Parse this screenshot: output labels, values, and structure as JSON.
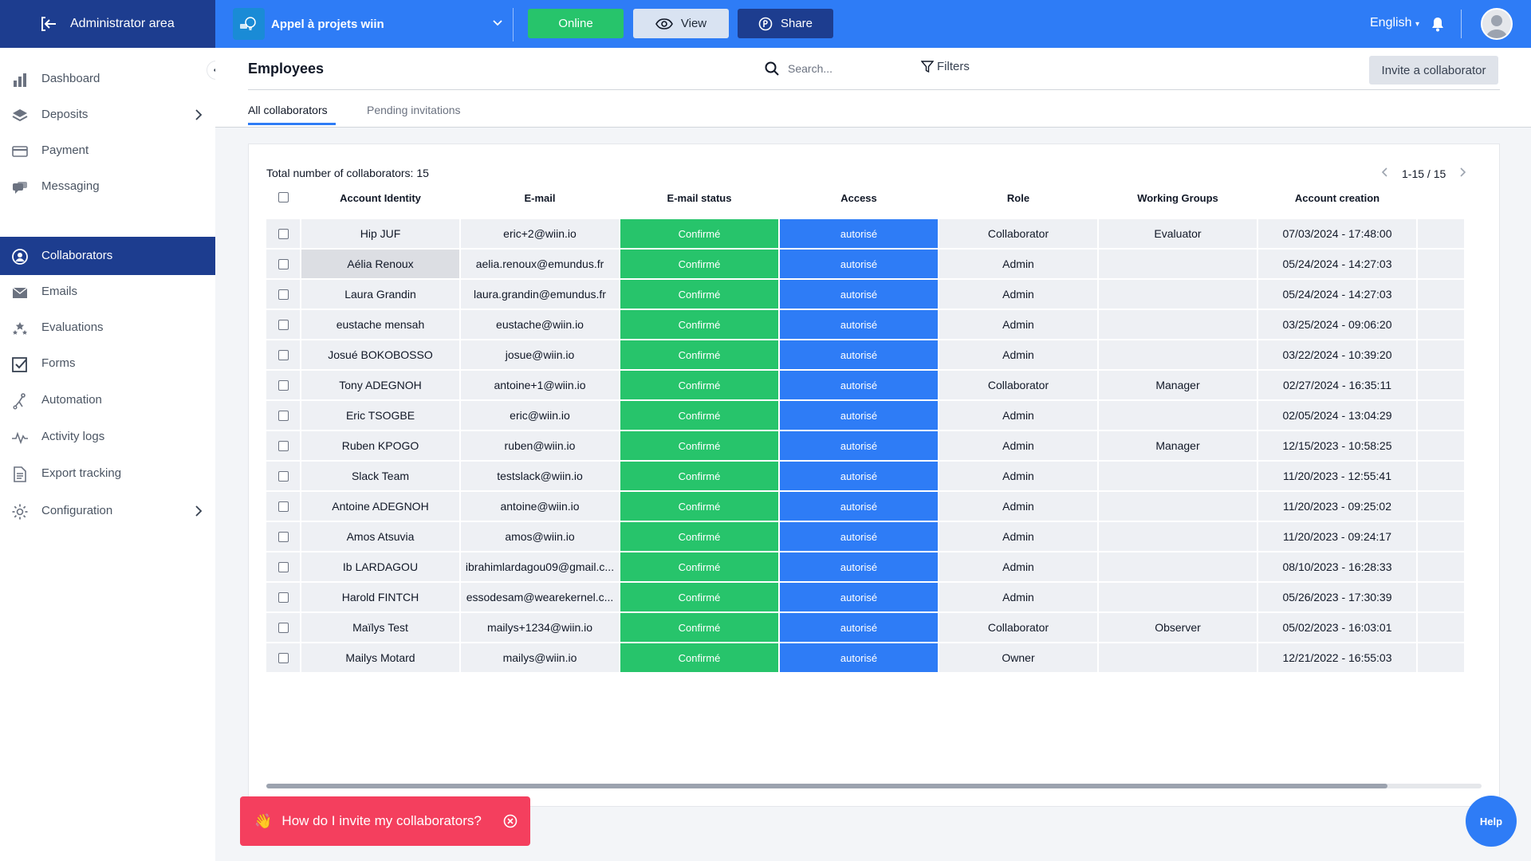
{
  "topbar": {
    "admin_label": "Administrator area",
    "project_name": "Appel à projets wiin",
    "online_label": "Online",
    "view_label": "View",
    "share_label": "Share",
    "language": "English",
    "colors": {
      "bar": "#2e7cf6",
      "admin": "#1d3d8f",
      "online": "#27c46b"
    }
  },
  "sidebar": {
    "items": [
      {
        "label": "Dashboard",
        "icon": "bar-chart-icon"
      },
      {
        "label": "Deposits",
        "icon": "layers-icon",
        "arrow": true
      },
      {
        "label": "Payment",
        "icon": "credit-card-icon"
      },
      {
        "label": "Messaging",
        "icon": "chat-icon"
      },
      {
        "label": "Collaborators",
        "icon": "user-circle-icon",
        "active": true
      },
      {
        "label": "Emails",
        "icon": "envelope-icon"
      },
      {
        "label": "Evaluations",
        "icon": "stars-icon"
      },
      {
        "label": "Forms",
        "icon": "checkbox-icon"
      },
      {
        "label": "Automation",
        "icon": "automation-icon"
      },
      {
        "label": "Activity logs",
        "icon": "pulse-icon"
      },
      {
        "label": "Export tracking",
        "icon": "document-icon"
      },
      {
        "label": "Configuration",
        "icon": "gear-icon",
        "arrow": true
      }
    ]
  },
  "header": {
    "title": "Employees",
    "search_placeholder": "Search...",
    "filters_label": "Filters",
    "invite_label": "Invite a collaborator",
    "tabs": [
      {
        "label": "All collaborators",
        "active": true
      },
      {
        "label": "Pending invitations",
        "active": false
      }
    ]
  },
  "table": {
    "total_label": "Total number of collaborators: 15",
    "pagination": "1-15 / 15",
    "columns": [
      "Account Identity",
      "E-mail",
      "E-mail status",
      "Access",
      "Role",
      "Working Groups",
      "Account creation"
    ],
    "rows": [
      [
        "Hip JUF",
        "eric+2@wiin.io",
        "Confirmé",
        "autorisé",
        "Collaborator",
        "Evaluator",
        "07/03/2024 - 17:48:00"
      ],
      [
        "Aélia Renoux",
        "aelia.renoux@emundus.fr",
        "Confirmé",
        "autorisé",
        "Admin",
        "",
        "05/24/2024 - 14:27:03"
      ],
      [
        "Laura Grandin",
        "laura.grandin@emundus.fr",
        "Confirmé",
        "autorisé",
        "Admin",
        "",
        "05/24/2024 - 14:27:03"
      ],
      [
        "eustache mensah",
        "eustache@wiin.io",
        "Confirmé",
        "autorisé",
        "Admin",
        "",
        "03/25/2024 - 09:06:20"
      ],
      [
        "Josué BOKOBOSSO",
        "josue@wiin.io",
        "Confirmé",
        "autorisé",
        "Admin",
        "",
        "03/22/2024 - 10:39:20"
      ],
      [
        "Tony ADEGNOH",
        "antoine+1@wiin.io",
        "Confirmé",
        "autorisé",
        "Collaborator",
        "Manager",
        "02/27/2024 - 16:35:11"
      ],
      [
        "Eric TSOGBE",
        "eric@wiin.io",
        "Confirmé",
        "autorisé",
        "Admin",
        "",
        "02/05/2024 - 13:04:29"
      ],
      [
        "Ruben KPOGO",
        "ruben@wiin.io",
        "Confirmé",
        "autorisé",
        "Admin",
        "Manager",
        "12/15/2023 - 10:58:25"
      ],
      [
        "Slack Team",
        "testslack@wiin.io",
        "Confirmé",
        "autorisé",
        "Admin",
        "",
        "11/20/2023 - 12:55:41"
      ],
      [
        "Antoine ADEGNOH",
        "antoine@wiin.io",
        "Confirmé",
        "autorisé",
        "Admin",
        "",
        "11/20/2023 - 09:25:02"
      ],
      [
        "Amos Atsuvia",
        "amos@wiin.io",
        "Confirmé",
        "autorisé",
        "Admin",
        "",
        "11/20/2023 - 09:24:17"
      ],
      [
        "Ib LARDAGOU",
        "ibrahimlardagou09@gmail.c...",
        "Confirmé",
        "autorisé",
        "Admin",
        "",
        "08/10/2023 - 16:28:33"
      ],
      [
        "Harold FINTCH",
        "essodesam@wearekernel.c...",
        "Confirmé",
        "autorisé",
        "Admin",
        "",
        "05/26/2023 - 17:30:39"
      ],
      [
        "Maïlys Test",
        "mailys+1234@wiin.io",
        "Confirmé",
        "autorisé",
        "Collaborator",
        "Observer",
        "05/02/2023 - 16:03:01"
      ],
      [
        "Mailys Motard",
        "mailys@wiin.io",
        "Confirmé",
        "autorisé",
        "Owner",
        "",
        "12/21/2022 - 16:55:03"
      ]
    ]
  },
  "helper": {
    "invite_hint": "How do I invite my collaborators?",
    "help_label": "Help"
  }
}
